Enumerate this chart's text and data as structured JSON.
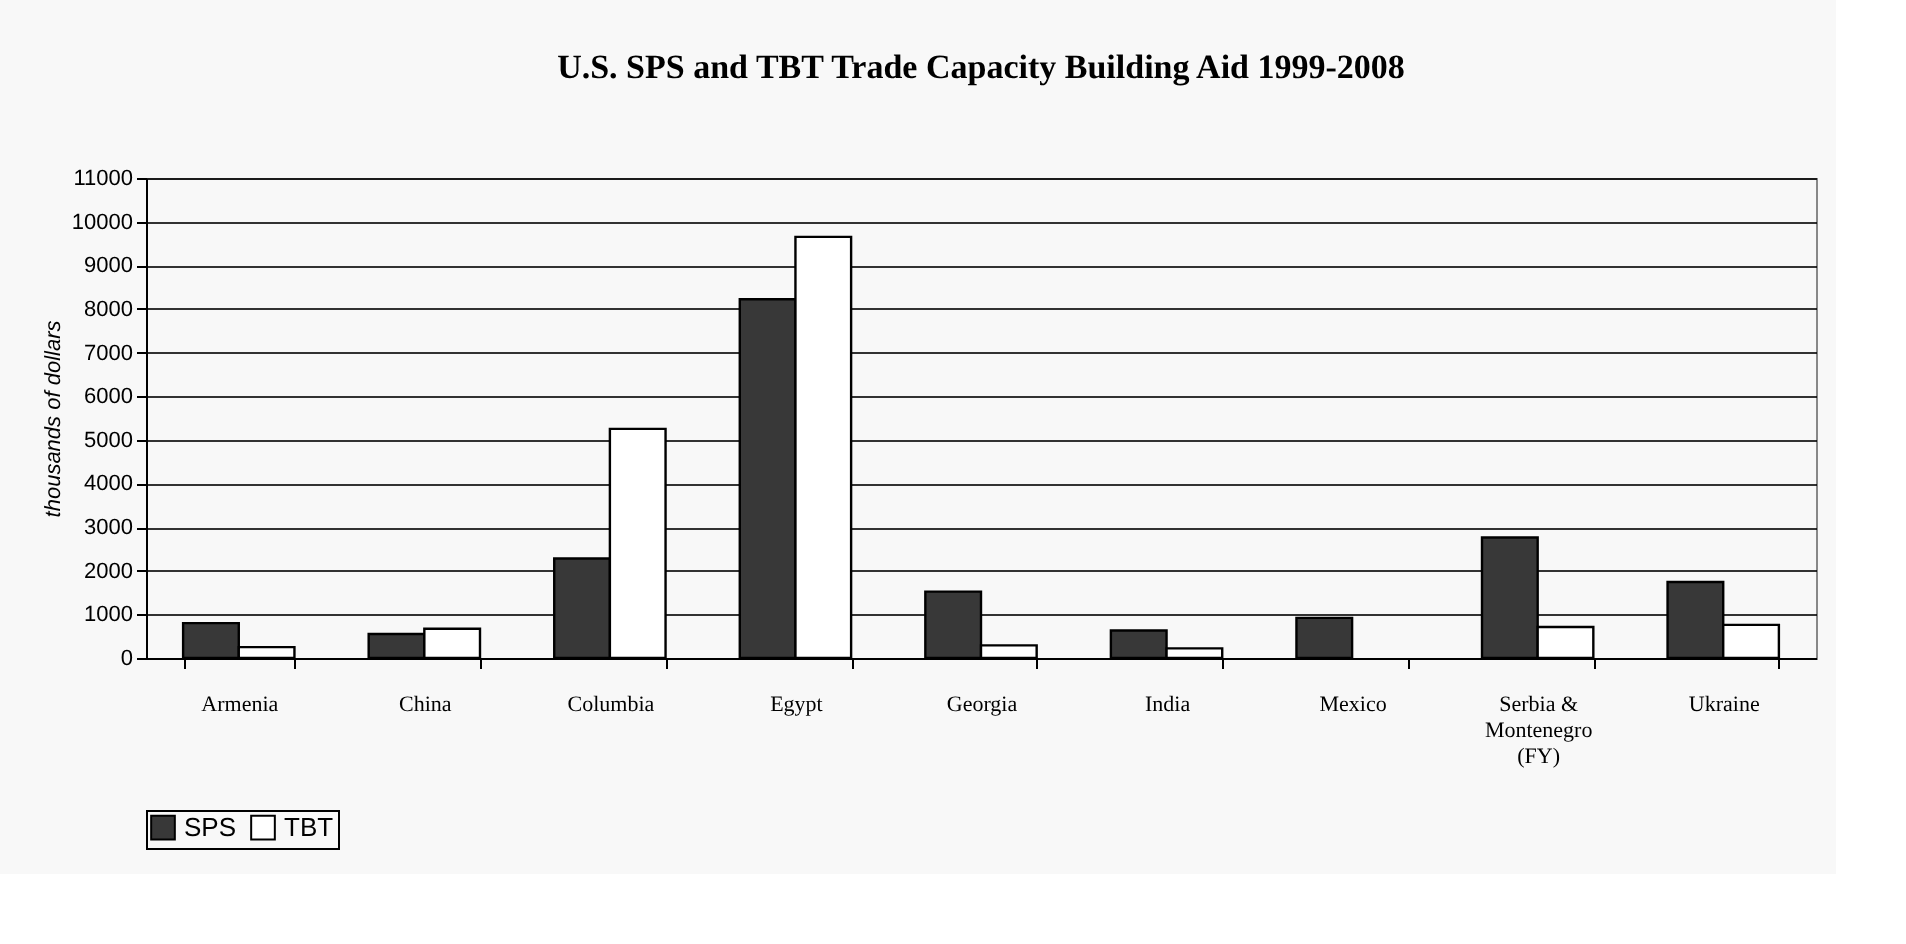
{
  "chart_data": {
    "type": "bar",
    "title": "U.S. SPS and TBT Trade Capacity Building Aid 1999-2008",
    "ylabel": "thousands of dollars",
    "categories": [
      "Armenia",
      "China",
      "Columbia",
      "Egypt",
      "Georgia",
      "India",
      "Mexico",
      "Serbia & Montenegro (FY)",
      "Ukraine"
    ],
    "series": [
      {
        "name": "SPS",
        "color": "#383838",
        "values": [
          800,
          550,
          2280,
          8220,
          1520,
          630,
          920,
          2760,
          1740
        ]
      },
      {
        "name": "TBT",
        "color": "#ffffff",
        "values": [
          250,
          670,
          5250,
          9650,
          290,
          220,
          null,
          710,
          760
        ]
      }
    ],
    "ylim": [
      0,
      11000
    ],
    "yticks": [
      0,
      1000,
      2000,
      3000,
      4000,
      5000,
      6000,
      7000,
      8000,
      9000,
      10000,
      11000
    ],
    "grid": "y",
    "legend": "bottom"
  }
}
